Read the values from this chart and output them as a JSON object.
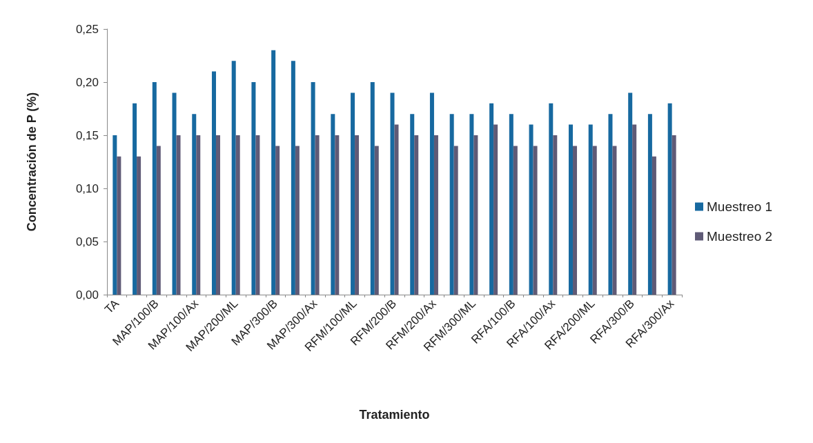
{
  "chart_data": {
    "type": "bar",
    "xlabel": "Tratamiento",
    "ylabel": "Concentración de P (%)",
    "categories": [
      "TA",
      null,
      "MAP/100/B",
      null,
      "MAP/100/Ax",
      null,
      "MAP/200/ML",
      null,
      "MAP/300/B",
      null,
      "MAP/300/Ax",
      null,
      "RFM/100/ML",
      null,
      "RFM/200/B",
      null,
      "RFM/200/Ax",
      null,
      "RFM/300/ML",
      null,
      "RFA/100/B",
      null,
      "RFA/100/Ax",
      null,
      "RFA/200/ML",
      null,
      "RFA/300/B",
      null,
      "RFA/300/Ax"
    ],
    "series": [
      {
        "name": "Muestreo 1",
        "color": "#1769a0",
        "values": [
          0.15,
          0.18,
          0.2,
          0.19,
          0.17,
          0.21,
          0.22,
          0.2,
          0.23,
          0.22,
          0.2,
          0.17,
          0.19,
          0.2,
          0.19,
          0.17,
          0.19,
          0.17,
          0.17,
          0.18,
          0.17,
          0.16,
          0.18,
          0.16,
          0.16,
          0.17,
          0.19,
          0.17,
          0.18
        ]
      },
      {
        "name": "Muestreo 2",
        "color": "#5f5a76",
        "values": [
          0.13,
          0.13,
          0.14,
          0.15,
          0.15,
          0.15,
          0.15,
          0.15,
          0.14,
          0.14,
          0.15,
          0.15,
          0.15,
          0.14,
          0.16,
          0.15,
          0.15,
          0.14,
          0.15,
          0.16,
          0.14,
          0.14,
          0.15,
          0.14,
          0.14,
          0.14,
          0.16,
          0.13,
          0.15
        ]
      }
    ],
    "ylim": [
      0,
      0.25
    ],
    "yticks": [
      {
        "value": 0,
        "label": "0,00"
      },
      {
        "value": 0.05,
        "label": "0,05"
      },
      {
        "value": 0.1,
        "label": "0,10"
      },
      {
        "value": 0.15,
        "label": "0,15"
      },
      {
        "value": 0.2,
        "label": "0,20"
      },
      {
        "value": 0.25,
        "label": "0,25"
      }
    ],
    "grid": false,
    "legend": "right"
  }
}
